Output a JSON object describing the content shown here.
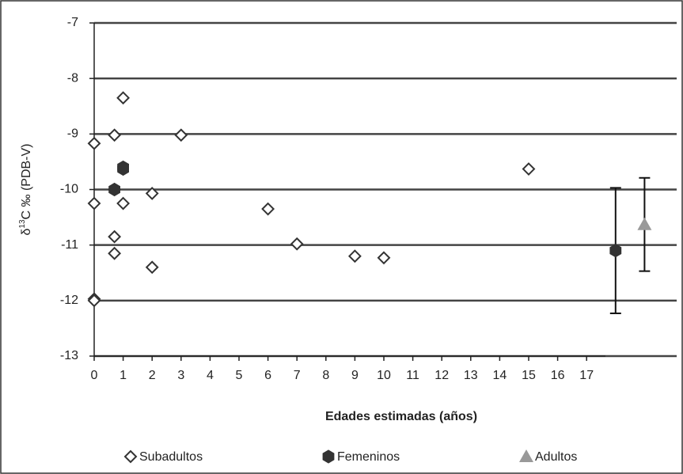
{
  "chart_data": {
    "type": "scatter",
    "y_label": {
      "prefix": "δ",
      "sup": "13",
      "rest": "C ‰ (PDB-V)"
    },
    "x_label": "Edades estimadas (años)",
    "xlim": [
      0,
      20
    ],
    "xticks": [
      0,
      1,
      2,
      3,
      4,
      5,
      6,
      7,
      8,
      9,
      10,
      11,
      12,
      13,
      14,
      15,
      16,
      17
    ],
    "ylim": [
      -13,
      -7
    ],
    "yticks": [
      -7,
      -8,
      -9,
      -10,
      -11,
      -12,
      -13
    ],
    "grid": true,
    "series": [
      {
        "name": "Subadultos",
        "marker": "diamond",
        "color": "#333333",
        "x": [
          0,
          0,
          0,
          0,
          0.7,
          0.7,
          0.7,
          0.7,
          1,
          1,
          2,
          2,
          3,
          6,
          7,
          9,
          10,
          15
        ],
        "values": [
          -9.17,
          -10.25,
          -11.97,
          -12.0,
          -9.02,
          -10.0,
          -10.85,
          -11.15,
          -8.35,
          -10.25,
          -10.07,
          -11.4,
          -9.02,
          -10.35,
          -10.98,
          -11.2,
          -11.23,
          -9.63
        ]
      },
      {
        "name": "Femeninos",
        "marker": "hexagon",
        "color": "#333333",
        "x": [
          0.7,
          1,
          1,
          18
        ],
        "values": [
          -10.0,
          -9.6,
          -9.63,
          -11.1
        ],
        "errors": [
          null,
          null,
          null,
          1.13
        ]
      },
      {
        "name": "Adultos",
        "marker": "triangle",
        "color": "#999999",
        "x": [
          19
        ],
        "values": [
          -10.63
        ],
        "errors": [
          0.84
        ]
      }
    ]
  }
}
